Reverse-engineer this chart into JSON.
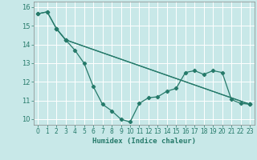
{
  "title": "",
  "xlabel": "Humidex (Indice chaleur)",
  "ylabel": "",
  "bg_color": "#c8e8e8",
  "grid_color": "#ffffff",
  "line_color": "#267a6a",
  "ylim": [
    9.7,
    16.3
  ],
  "xlim": [
    -0.5,
    23.5
  ],
  "yticks": [
    10,
    11,
    12,
    13,
    14,
    15,
    16
  ],
  "xticks": [
    0,
    1,
    2,
    3,
    4,
    5,
    6,
    7,
    8,
    9,
    10,
    11,
    12,
    13,
    14,
    15,
    16,
    17,
    18,
    19,
    20,
    21,
    22,
    23
  ],
  "line1_x": [
    0,
    1,
    2,
    3,
    4,
    5,
    6,
    7,
    8,
    9,
    10,
    11,
    12,
    13,
    14,
    15,
    16,
    17,
    18,
    19,
    20,
    21,
    22,
    23
  ],
  "line1_y": [
    15.65,
    15.75,
    14.85,
    14.25,
    13.7,
    13.0,
    11.75,
    10.8,
    10.45,
    10.0,
    9.85,
    10.85,
    11.15,
    11.2,
    11.5,
    11.65,
    12.5,
    12.6,
    12.4,
    12.6,
    12.5,
    11.05,
    10.85,
    10.8
  ],
  "line2_x": [
    0,
    1,
    2,
    3,
    23
  ],
  "line2_y": [
    15.65,
    15.75,
    14.85,
    14.25,
    10.8
  ],
  "line3_x": [
    2,
    3,
    23
  ],
  "line3_y": [
    14.85,
    14.25,
    10.8
  ]
}
